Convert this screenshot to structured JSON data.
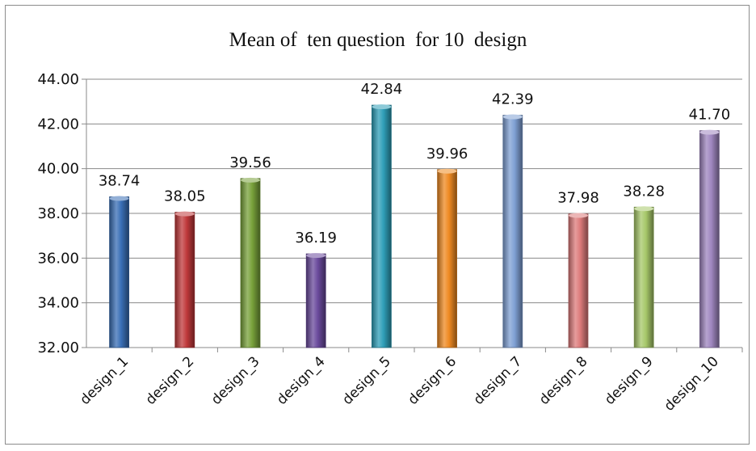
{
  "chart_data": {
    "type": "bar",
    "title": "Mean of  ten question  for 10  design",
    "categories": [
      "design_1",
      "design_2",
      "design_3",
      "design_4",
      "design_5",
      "design_6",
      "design_7",
      "design_8",
      "design_9",
      "design_10"
    ],
    "values": [
      38.74,
      38.05,
      39.56,
      36.19,
      42.84,
      39.96,
      42.39,
      37.98,
      38.28,
      41.7
    ],
    "data_labels": [
      "38.74",
      "38.05",
      "39.56",
      "36.19",
      "42.84",
      "39.96",
      "42.39",
      "37.98",
      "38.28",
      "41.70"
    ],
    "ylim": [
      32,
      44
    ],
    "yticks": [
      "32.00",
      "34.00",
      "36.00",
      "38.00",
      "40.00",
      "42.00",
      "44.00"
    ],
    "grid": true,
    "legend": "none",
    "colors": [
      "#3a6fb6",
      "#c0393b",
      "#78a13a",
      "#6a4a9c",
      "#2f9fb8",
      "#ef8a22",
      "#7fa0d4",
      "#dd7b7b",
      "#a7c86a",
      "#9f86bf"
    ]
  }
}
